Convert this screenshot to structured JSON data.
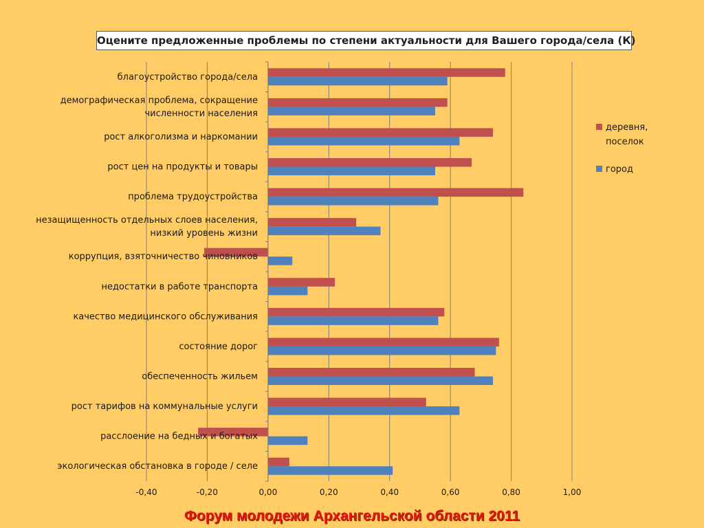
{
  "chart_data": {
    "type": "bar",
    "orientation": "horizontal",
    "title": "Оцените предложенные проблемы по степени актуальности для Вашего города/села (К)",
    "categories": [
      [
        "благоустройство города/села"
      ],
      [
        "демографическая проблема, сокращение",
        "численности населения"
      ],
      [
        "рост алкоголизма и наркомании"
      ],
      [
        "рост цен на продукты и товары"
      ],
      [
        "проблема трудоустройства"
      ],
      [
        "незащищенность отдельных слоев населения,",
        "низкий уровень жизни"
      ],
      [
        "коррупция, взяточничество чиновников"
      ],
      [
        "недостатки в работе транспорта"
      ],
      [
        "качество медицинского обслуживания"
      ],
      [
        "состояние дорог"
      ],
      [
        "обеспеченность жильем"
      ],
      [
        "рост тарифов на коммунальные  услуги"
      ],
      [
        "расслоение на бедных и  богатых"
      ],
      [
        "экологическая обстановка в городе  / селе"
      ]
    ],
    "series": [
      {
        "name": "деревня, поселок",
        "legend_lines": [
          "деревня,",
          "поселок"
        ],
        "color": "#C0504D",
        "values": [
          0.78,
          0.59,
          0.74,
          0.67,
          0.84,
          0.29,
          -0.21,
          0.22,
          0.58,
          0.76,
          0.68,
          0.52,
          -0.23,
          0.07
        ]
      },
      {
        "name": "город",
        "legend_lines": [
          "город"
        ],
        "color": "#4F81BD",
        "values": [
          0.59,
          0.55,
          0.63,
          0.55,
          0.56,
          0.37,
          0.08,
          0.13,
          0.56,
          0.75,
          0.74,
          0.63,
          0.13,
          0.41
        ]
      }
    ],
    "xlim": [
      -0.4,
      1.0
    ],
    "xticks": [
      -0.4,
      -0.2,
      0.0,
      0.2,
      0.4,
      0.6,
      0.8,
      1.0
    ],
    "xtick_labels": [
      "-0,40",
      "-0,20",
      "0,00",
      "0,20",
      "0,40",
      "0,60",
      "0,80",
      "1,00"
    ],
    "grid": true,
    "legend_position": "right"
  },
  "footer": "Форум молодежи Архангельской области 2011"
}
